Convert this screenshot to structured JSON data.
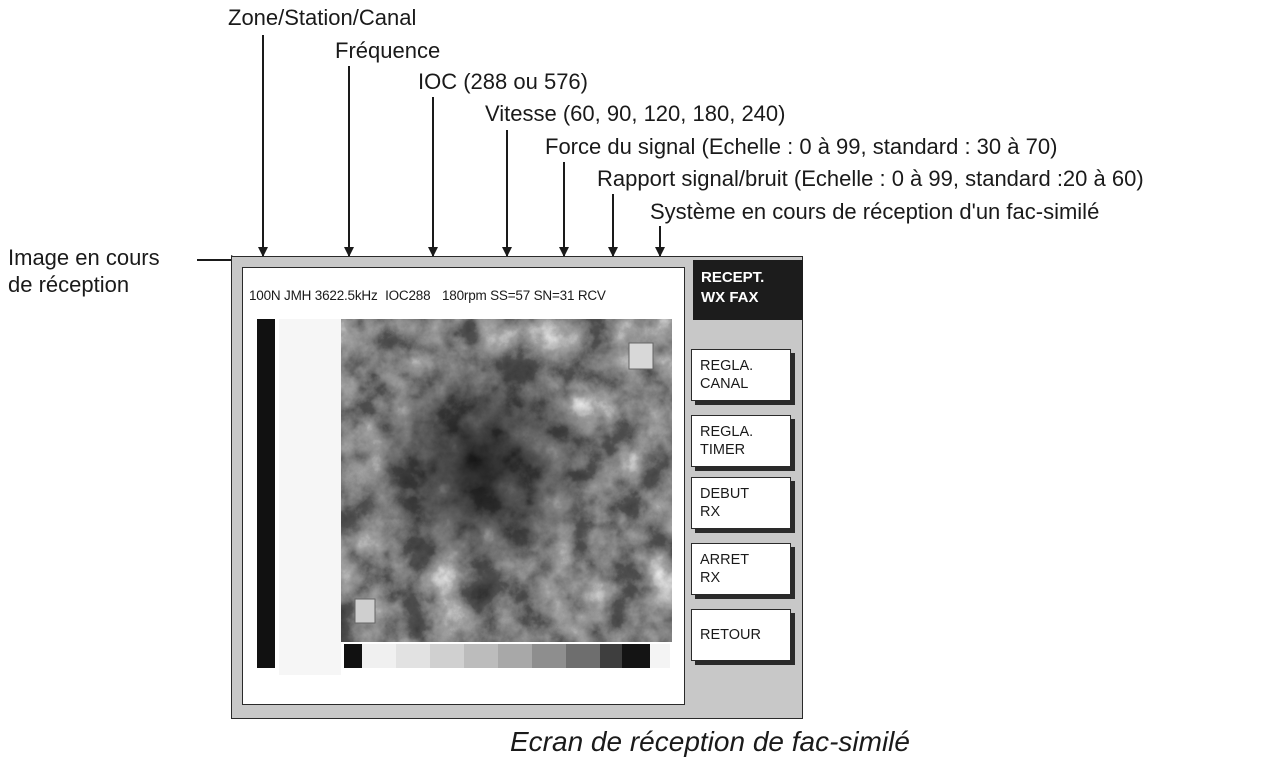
{
  "callouts": {
    "zone_station_canal": "Zone/Station/Canal",
    "frequence": "Fréquence",
    "ioc": "IOC (288 ou 576)",
    "vitesse": "Vitesse (60, 90, 120, 180, 240)",
    "force_signal": "Force du signal (Echelle : 0 à 99, standard : 30 à 70)",
    "rapport_signal_bruit": "Rapport signal/bruit (Echelle : 0 à 99, standard :20 à 60)",
    "systeme_reception": "Système en cours de réception d'un fac-similé",
    "image_line1": "Image en cours",
    "image_line2": "de réception"
  },
  "status_bar": {
    "zone": "100N",
    "station": "JMH",
    "frequency": "3622.5kHz",
    "ioc": "IOC288",
    "speed": "180rpm",
    "signal_strength": "SS=57",
    "signal_noise": "SN=31",
    "state": "RCV"
  },
  "menu": {
    "title_line1": "RECEPT.",
    "title_line2": "WX FAX",
    "buttons": [
      {
        "line1": "REGLA.",
        "line2": "CANAL"
      },
      {
        "line1": "REGLA.",
        "line2": "TIMER"
      },
      {
        "line1": "DEBUT",
        "line2": "RX"
      },
      {
        "line1": "ARRET",
        "line2": "RX"
      },
      {
        "line1": "RETOUR",
        "line2": ""
      }
    ]
  },
  "caption": "Ecran de réception de fac-similé",
  "colors": {
    "screen_background": "#c8c8c8",
    "menu_title_background": "#1c1c1c",
    "line": "#1a1a1a"
  }
}
